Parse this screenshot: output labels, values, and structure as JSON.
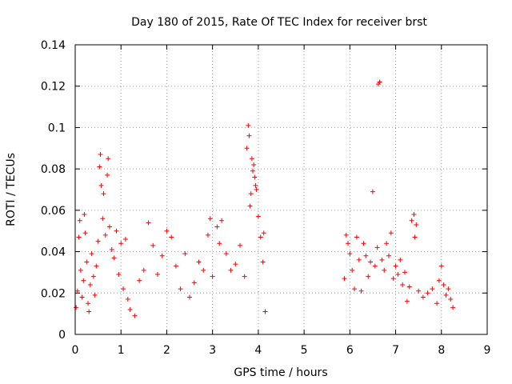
{
  "chart_data": {
    "type": "scatter",
    "title": "Day 180 of 2015, Rate Of TEC Index for receiver brst",
    "xlabel": "GPS time / hours",
    "ylabel": "ROTI / TECUs",
    "xlim": [
      0,
      9
    ],
    "ylim": [
      0,
      0.14
    ],
    "xticks": [
      0,
      1,
      2,
      3,
      4,
      5,
      6,
      7,
      8,
      9
    ],
    "xtick_labels": [
      "0",
      "1",
      "2",
      "3",
      "4",
      "5",
      "6",
      "7",
      "8",
      "9"
    ],
    "yticks": [
      0,
      0.02,
      0.04,
      0.06,
      0.08,
      0.1,
      0.12,
      0.14
    ],
    "ytick_labels": [
      "0",
      "0.02",
      "0.04",
      "0.06",
      "0.08",
      "0.1",
      "0.12",
      "0.14"
    ],
    "grid": true,
    "marker": "+",
    "color": "#ff0000",
    "series": [
      {
        "name": "ROTI",
        "points": [
          [
            0.02,
            0.013
          ],
          [
            0.05,
            0.021
          ],
          [
            0.08,
            0.047
          ],
          [
            0.1,
            0.055
          ],
          [
            0.12,
            0.031
          ],
          [
            0.15,
            0.018
          ],
          [
            0.18,
            0.026
          ],
          [
            0.2,
            0.058
          ],
          [
            0.22,
            0.049
          ],
          [
            0.25,
            0.035
          ],
          [
            0.28,
            0.015
          ],
          [
            0.3,
            0.011
          ],
          [
            0.33,
            0.024
          ],
          [
            0.36,
            0.039
          ],
          [
            0.4,
            0.028
          ],
          [
            0.43,
            0.019
          ],
          [
            0.46,
            0.033
          ],
          [
            0.5,
            0.045
          ],
          [
            0.53,
            0.081
          ],
          [
            0.55,
            0.087
          ],
          [
            0.57,
            0.072
          ],
          [
            0.6,
            0.056
          ],
          [
            0.62,
            0.068
          ],
          [
            0.66,
            0.048
          ],
          [
            0.7,
            0.077
          ],
          [
            0.72,
            0.085
          ],
          [
            0.75,
            0.052
          ],
          [
            0.8,
            0.041
          ],
          [
            0.85,
            0.037
          ],
          [
            0.9,
            0.05
          ],
          [
            0.95,
            0.029
          ],
          [
            1.0,
            0.044
          ],
          [
            1.05,
            0.022
          ],
          [
            1.1,
            0.046
          ],
          [
            1.15,
            0.017
          ],
          [
            1.2,
            0.012
          ],
          [
            1.3,
            0.009
          ],
          [
            1.4,
            0.026
          ],
          [
            1.5,
            0.031
          ],
          [
            1.6,
            0.054
          ],
          [
            1.7,
            0.043
          ],
          [
            1.8,
            0.029
          ],
          [
            1.9,
            0.038
          ],
          [
            2.0,
            0.05
          ],
          [
            2.1,
            0.047
          ],
          [
            2.2,
            0.033
          ],
          [
            2.3,
            0.022
          ],
          [
            2.4,
            0.039
          ],
          [
            2.5,
            0.018
          ],
          [
            2.6,
            0.025
          ],
          [
            2.7,
            0.035
          ],
          [
            2.8,
            0.031
          ],
          [
            2.9,
            0.048
          ],
          [
            2.95,
            0.056
          ],
          [
            3.0,
            0.028
          ],
          [
            3.1,
            0.052
          ],
          [
            3.15,
            0.044
          ],
          [
            3.2,
            0.055
          ],
          [
            3.3,
            0.039
          ],
          [
            3.4,
            0.031
          ],
          [
            3.5,
            0.034
          ],
          [
            3.6,
            0.043
          ],
          [
            3.7,
            0.028
          ],
          [
            3.75,
            0.09
          ],
          [
            3.78,
            0.101
          ],
          [
            3.8,
            0.096
          ],
          [
            3.82,
            0.062
          ],
          [
            3.84,
            0.068
          ],
          [
            3.86,
            0.085
          ],
          [
            3.88,
            0.079
          ],
          [
            3.9,
            0.082
          ],
          [
            3.92,
            0.076
          ],
          [
            3.94,
            0.072
          ],
          [
            3.96,
            0.07
          ],
          [
            4.0,
            0.057
          ],
          [
            4.05,
            0.047
          ],
          [
            4.1,
            0.035
          ],
          [
            4.12,
            0.049
          ],
          [
            4.15,
            0.011
          ],
          [
            5.88,
            0.027
          ],
          [
            5.92,
            0.048
          ],
          [
            5.96,
            0.044
          ],
          [
            6.0,
            0.039
          ],
          [
            6.05,
            0.031
          ],
          [
            6.1,
            0.022
          ],
          [
            6.15,
            0.047
          ],
          [
            6.2,
            0.036
          ],
          [
            6.25,
            0.021
          ],
          [
            6.3,
            0.044
          ],
          [
            6.35,
            0.038
          ],
          [
            6.4,
            0.028
          ],
          [
            6.45,
            0.035
          ],
          [
            6.5,
            0.069
          ],
          [
            6.55,
            0.033
          ],
          [
            6.6,
            0.042
          ],
          [
            6.62,
            0.121
          ],
          [
            6.65,
            0.122
          ],
          [
            6.7,
            0.036
          ],
          [
            6.75,
            0.031
          ],
          [
            6.8,
            0.044
          ],
          [
            6.85,
            0.038
          ],
          [
            6.9,
            0.049
          ],
          [
            6.95,
            0.027
          ],
          [
            7.0,
            0.033
          ],
          [
            7.05,
            0.029
          ],
          [
            7.1,
            0.036
          ],
          [
            7.15,
            0.024
          ],
          [
            7.2,
            0.03
          ],
          [
            7.25,
            0.016
          ],
          [
            7.3,
            0.023
          ],
          [
            7.35,
            0.055
          ],
          [
            7.4,
            0.058
          ],
          [
            7.42,
            0.047
          ],
          [
            7.45,
            0.053
          ],
          [
            7.5,
            0.021
          ],
          [
            7.6,
            0.018
          ],
          [
            7.7,
            0.02
          ],
          [
            7.8,
            0.022
          ],
          [
            7.9,
            0.015
          ],
          [
            7.95,
            0.026
          ],
          [
            8.0,
            0.033
          ],
          [
            8.05,
            0.024
          ],
          [
            8.1,
            0.019
          ],
          [
            8.15,
            0.022
          ],
          [
            8.2,
            0.017
          ],
          [
            8.25,
            0.013
          ]
        ]
      }
    ]
  }
}
